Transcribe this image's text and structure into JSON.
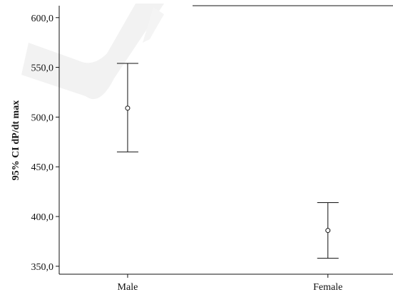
{
  "chart_data": {
    "type": "errorbar",
    "categories": [
      "Male",
      "Female"
    ],
    "ylabel": "95% CI dP/dt max",
    "xlabel": "",
    "ylim": [
      342,
      612
    ],
    "yticks": [
      "350,0",
      "400,0",
      "450,0",
      "500,0",
      "550,0",
      "600,0"
    ],
    "ytick_values": [
      350,
      400,
      450,
      500,
      550,
      600
    ],
    "series": [
      {
        "mean": [
          509,
          386
        ],
        "ci_lower": [
          465,
          358
        ],
        "ci_upper": [
          554,
          414
        ]
      }
    ],
    "grid": false,
    "legend": "none",
    "colors": {
      "line": "#111111",
      "background": "#ffffff",
      "watermark": "#e8e8e8"
    }
  }
}
